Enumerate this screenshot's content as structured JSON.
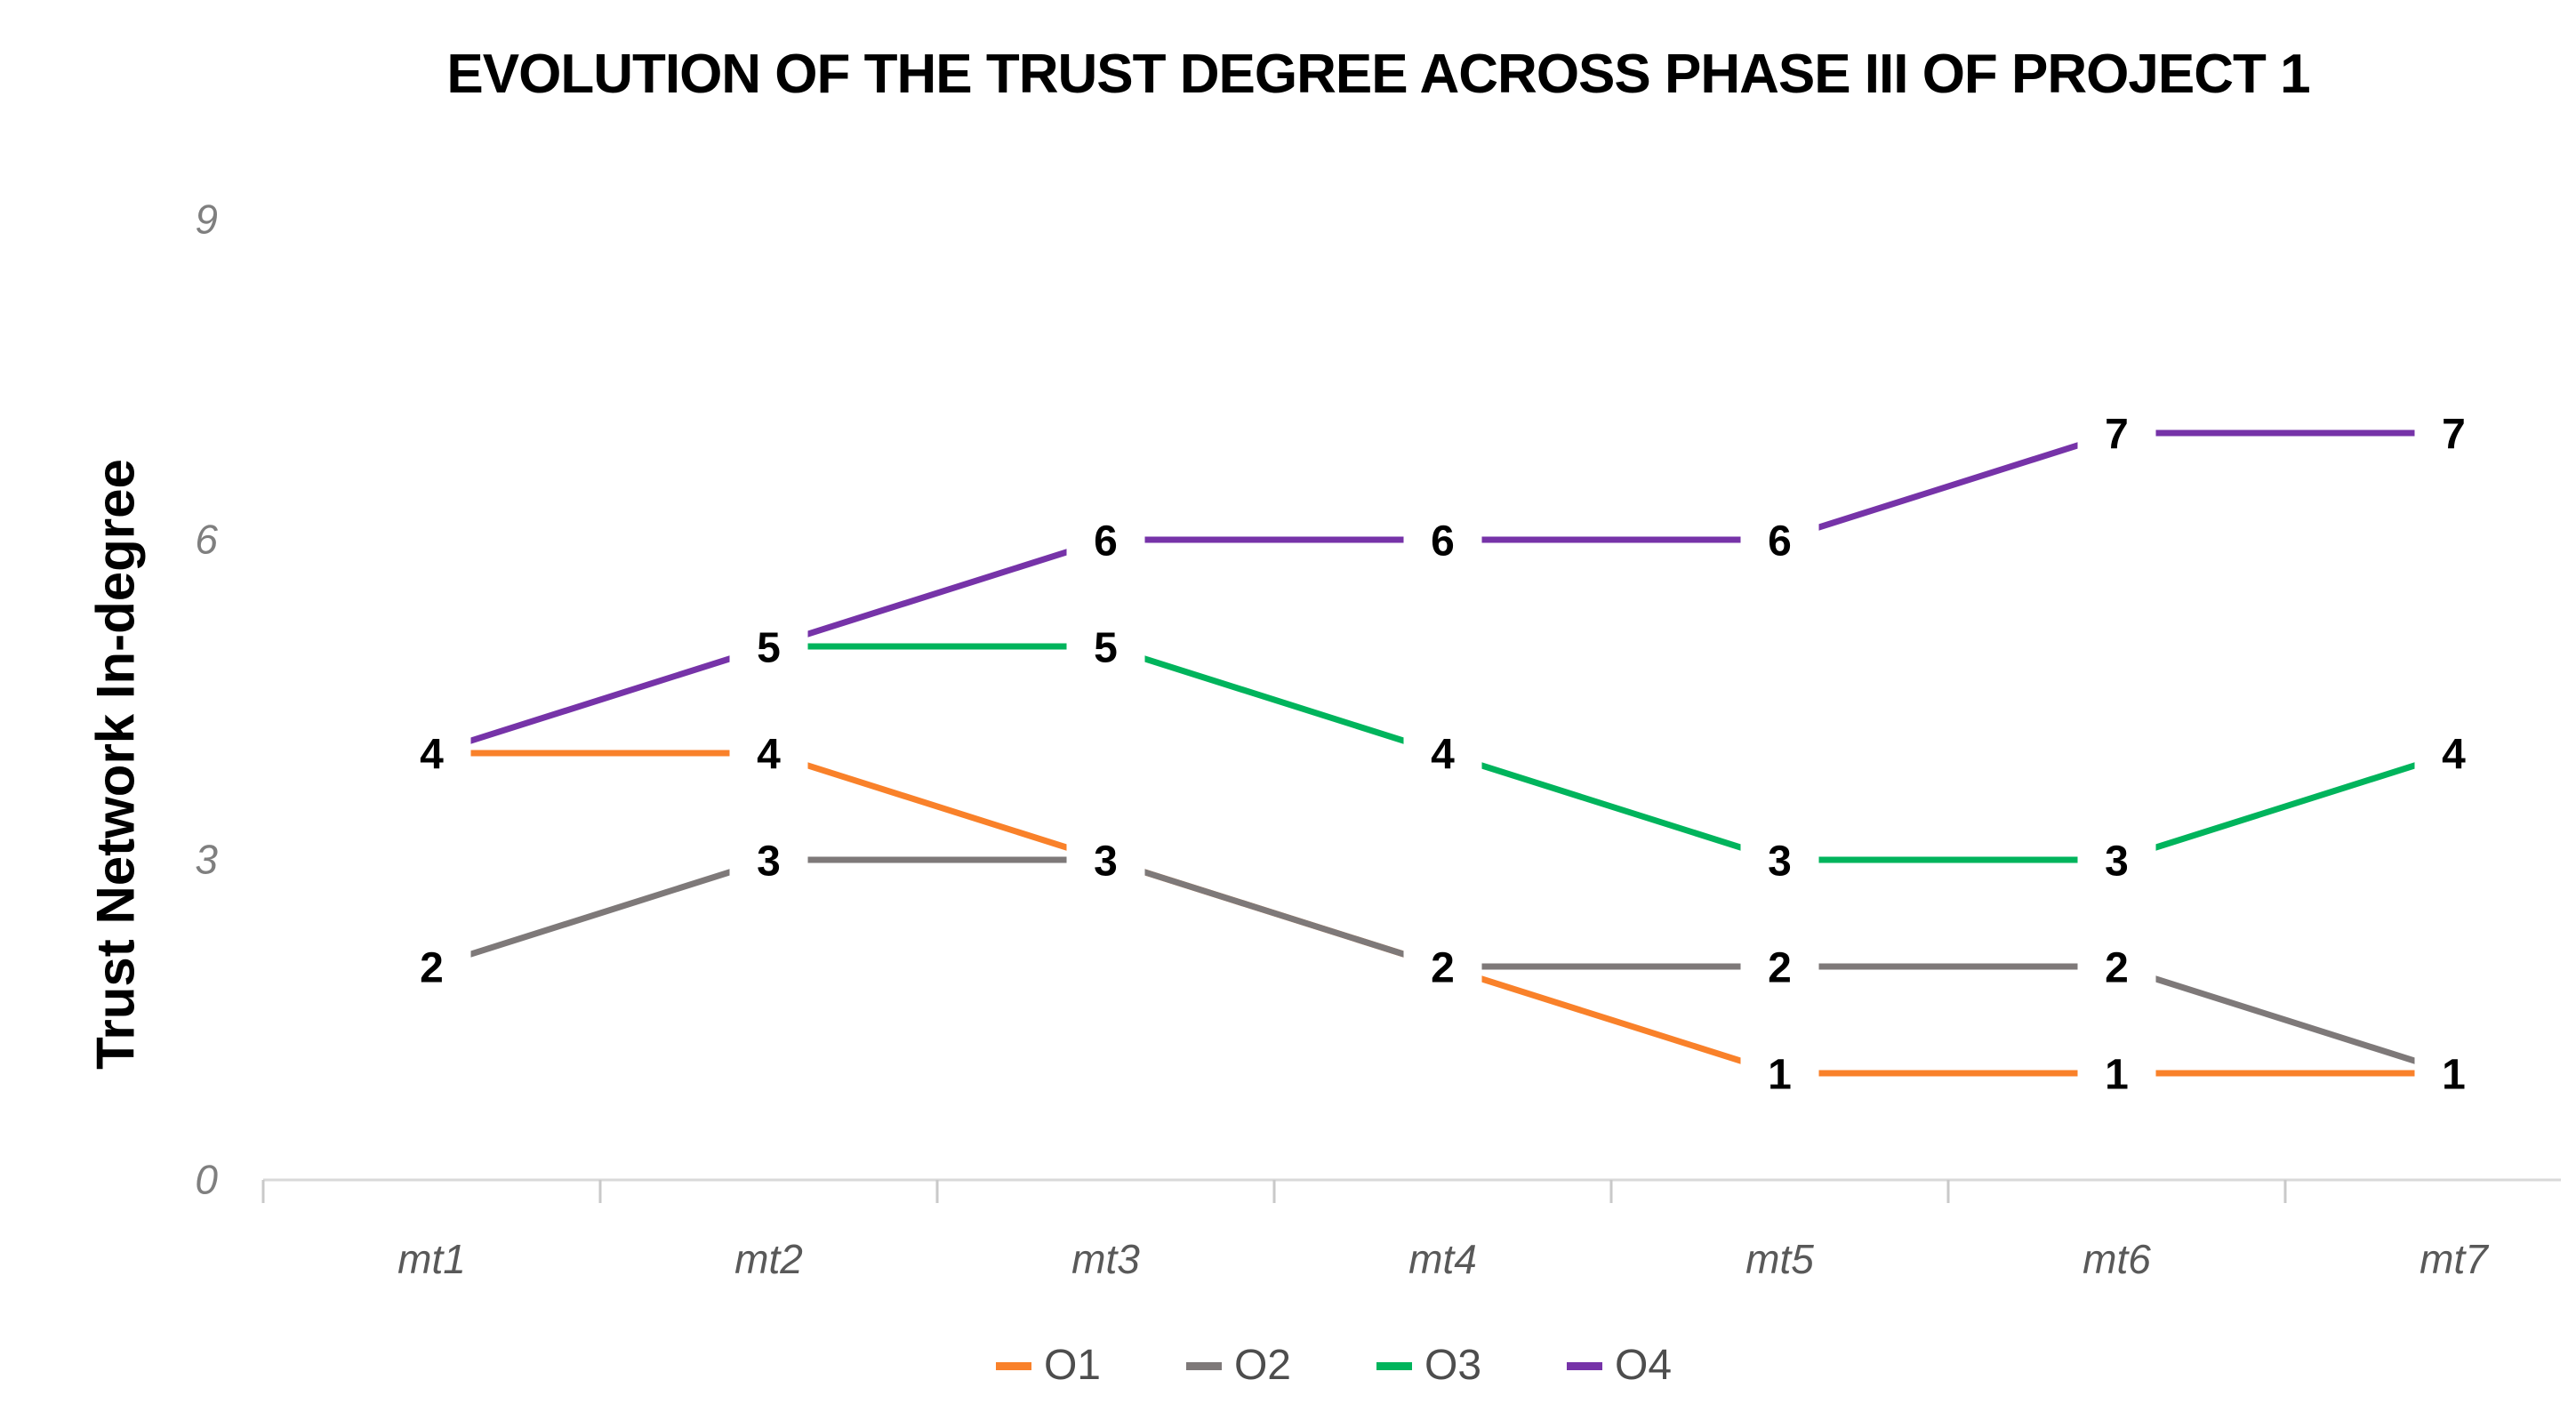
{
  "chart": {
    "title": "EVOLUTION OF THE TRUST DEGREE ACROSS PHASE III OF PROJECT 1",
    "ylabel": "Trust Network In-degree"
  },
  "chart_data": {
    "type": "line",
    "title": "EVOLUTION OF THE TRUST DEGREE ACROSS PHASE III OF PROJECT 1",
    "xlabel": "",
    "ylabel": "Trust Network In-degree",
    "categories": [
      "mt1",
      "mt2",
      "mt3",
      "mt4",
      "mt5",
      "mt6",
      "mt7"
    ],
    "series": [
      {
        "name": "O1",
        "color": "#F9812A",
        "values": [
          4,
          4,
          3,
          2,
          1,
          1,
          1
        ]
      },
      {
        "name": "O2",
        "color": "#7E7979",
        "values": [
          2,
          3,
          3,
          2,
          2,
          2,
          1
        ]
      },
      {
        "name": "O3",
        "color": "#00B45C",
        "values": [
          null,
          5,
          5,
          4,
          3,
          3,
          4
        ]
      },
      {
        "name": "O4",
        "color": "#7633A8",
        "values": [
          4,
          5,
          6,
          6,
          6,
          7,
          7
        ]
      }
    ],
    "ylim": [
      0,
      9
    ],
    "yticks": [
      9,
      6,
      3,
      0
    ],
    "grid": false,
    "data_labels": true,
    "legend_position": "bottom",
    "colors": {
      "axis_line": "#D9D9D9",
      "axis_tick": "#C9C9C9",
      "y_tick_label": "#7F7F7F",
      "x_tick_label": "#595959",
      "data_label": "#000000",
      "legend_text": "#4D4D4D",
      "title": "#000000",
      "background": "#FFFFFF"
    }
  }
}
